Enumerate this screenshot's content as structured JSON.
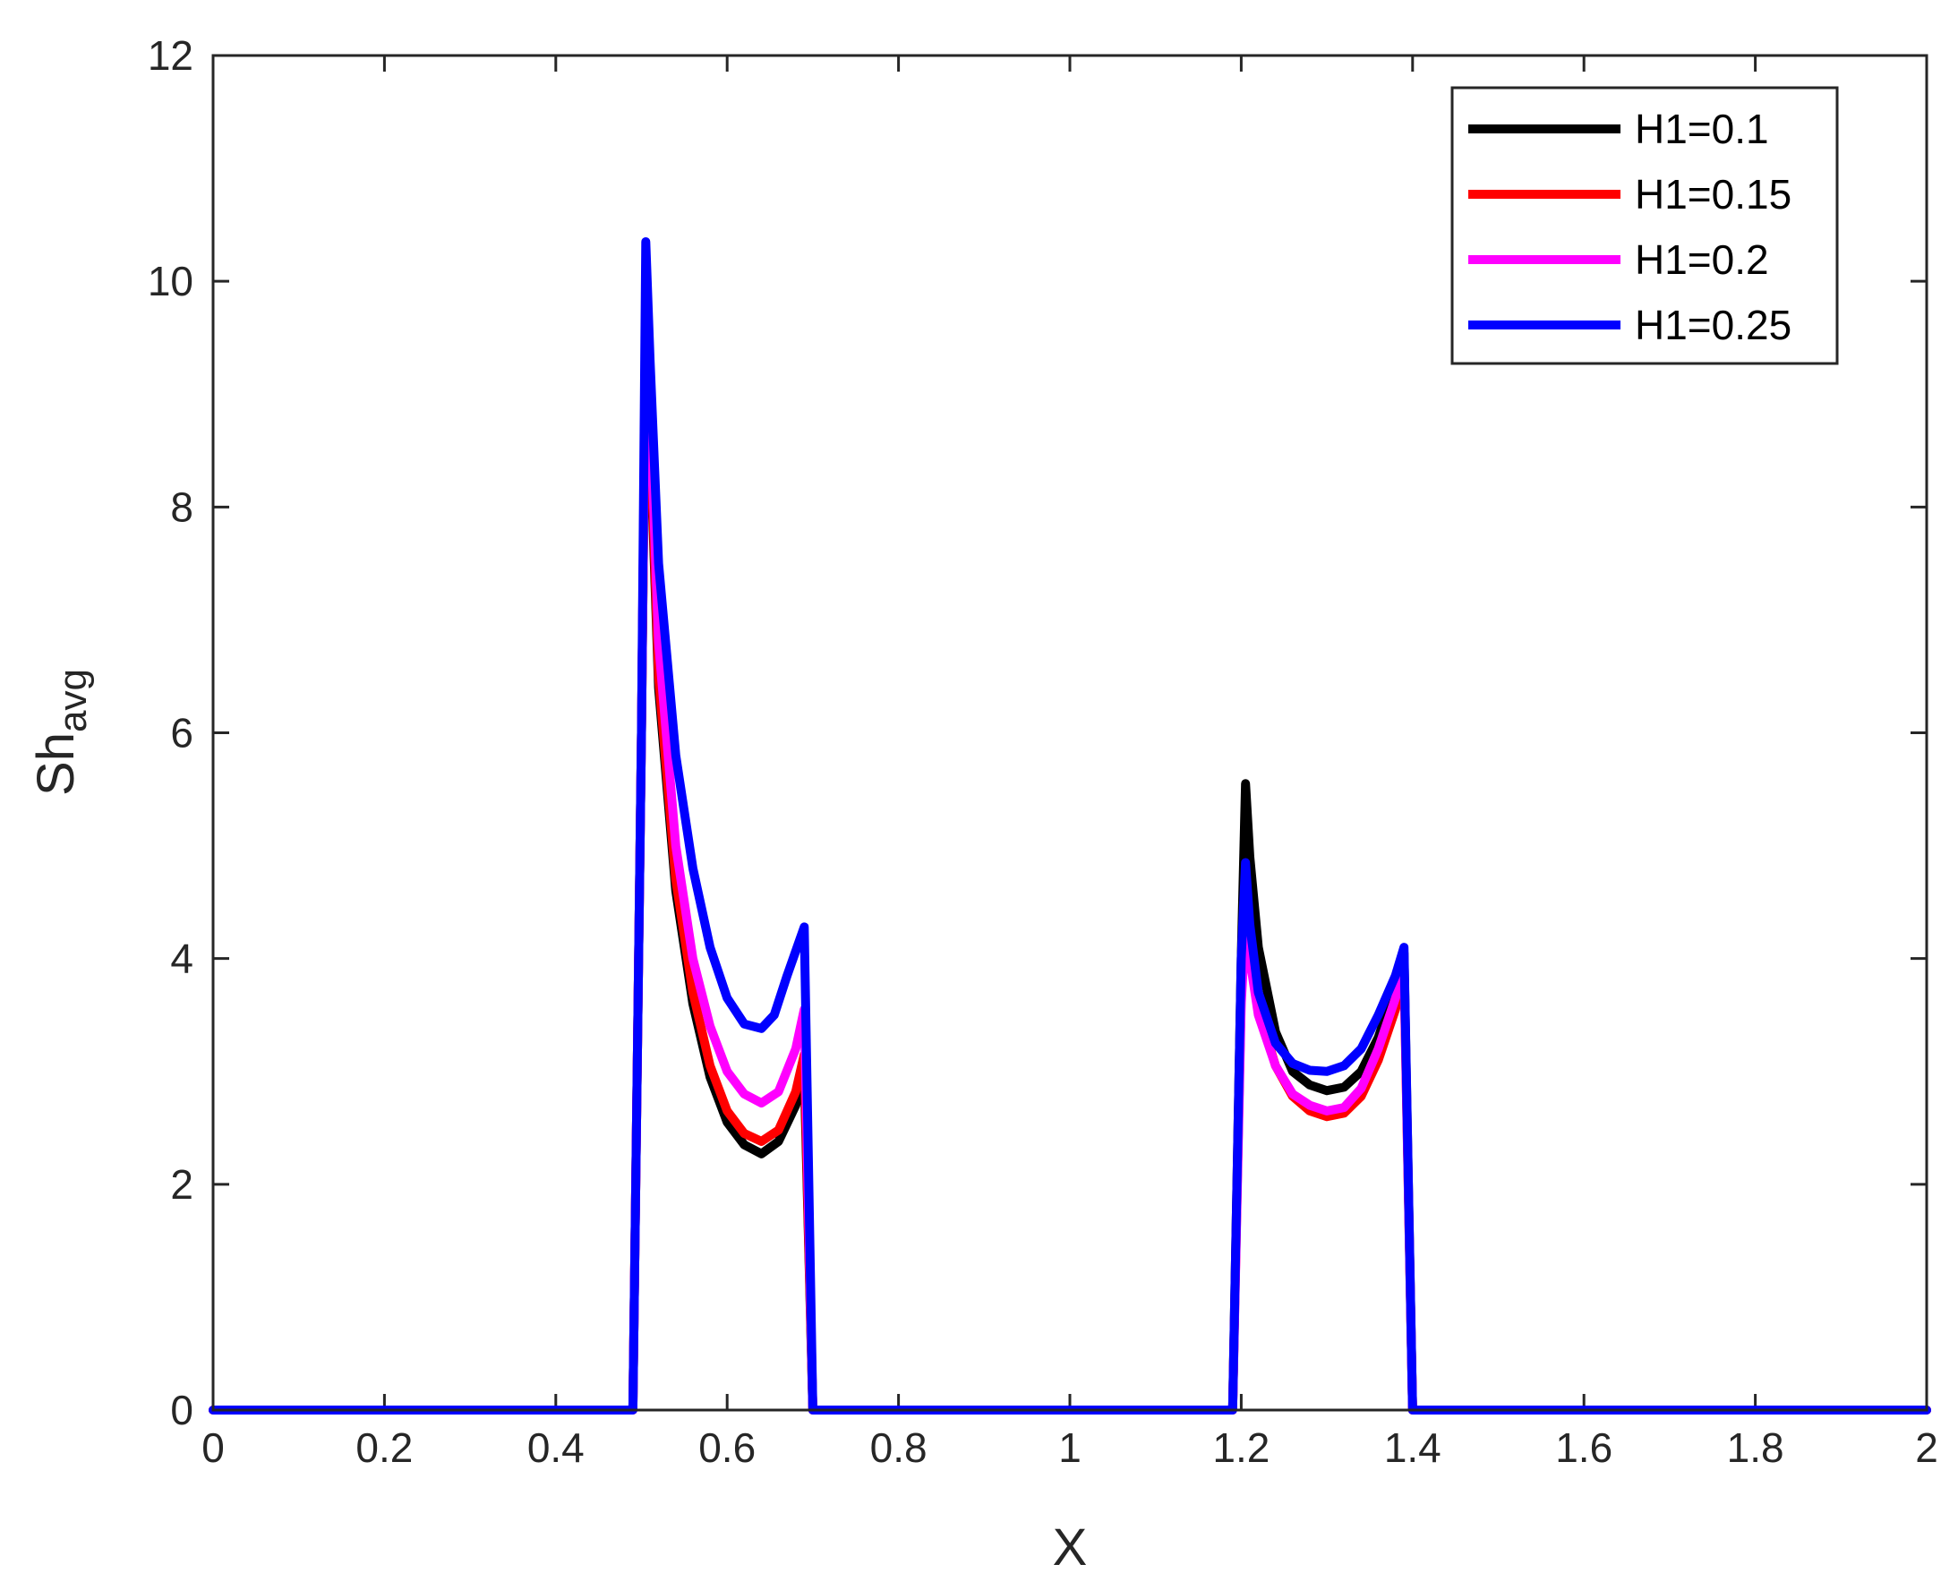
{
  "chart_data": {
    "type": "line",
    "title": "",
    "xlabel": "X",
    "ylabel_main": "Sh",
    "ylabel_sub": "avg",
    "xlim": [
      0,
      2
    ],
    "ylim": [
      0,
      12
    ],
    "xticks": [
      0,
      0.2,
      0.4,
      0.6,
      0.8,
      1,
      1.2,
      1.4,
      1.6,
      1.8,
      2
    ],
    "xtick_labels": [
      "0",
      "0.2",
      "0.4",
      "0.6",
      "0.8",
      "1",
      "1.2",
      "1.4",
      "1.6",
      "1.8",
      "2"
    ],
    "yticks": [
      0,
      2,
      4,
      6,
      8,
      10,
      12
    ],
    "ytick_labels": [
      "0",
      "2",
      "4",
      "6",
      "8",
      "10",
      "12"
    ],
    "grid": false,
    "legend_position": "top-right",
    "series": [
      {
        "name": "H1=0.1",
        "color": "#000000",
        "points": [
          [
            0,
            0
          ],
          [
            0.49,
            0
          ],
          [
            0.5,
            6
          ],
          [
            0.505,
            9.6
          ],
          [
            0.51,
            8.6
          ],
          [
            0.52,
            6.4
          ],
          [
            0.54,
            4.6
          ],
          [
            0.56,
            3.6
          ],
          [
            0.58,
            2.95
          ],
          [
            0.6,
            2.55
          ],
          [
            0.62,
            2.35
          ],
          [
            0.64,
            2.27
          ],
          [
            0.66,
            2.38
          ],
          [
            0.68,
            2.7
          ],
          [
            0.69,
            3.0
          ],
          [
            0.7,
            0
          ],
          [
            1.19,
            0
          ],
          [
            1.2,
            4.0
          ],
          [
            1.205,
            5.55
          ],
          [
            1.21,
            4.9
          ],
          [
            1.22,
            4.1
          ],
          [
            1.24,
            3.35
          ],
          [
            1.26,
            3.0
          ],
          [
            1.28,
            2.88
          ],
          [
            1.3,
            2.83
          ],
          [
            1.32,
            2.86
          ],
          [
            1.34,
            3.0
          ],
          [
            1.36,
            3.3
          ],
          [
            1.38,
            3.75
          ],
          [
            1.39,
            4.05
          ],
          [
            1.4,
            0
          ],
          [
            2,
            0
          ]
        ]
      },
      {
        "name": "H1=0.15",
        "color": "#ff0000",
        "points": [
          [
            0,
            0
          ],
          [
            0.49,
            0
          ],
          [
            0.5,
            6
          ],
          [
            0.505,
            9.6
          ],
          [
            0.51,
            8.7
          ],
          [
            0.52,
            6.5
          ],
          [
            0.54,
            4.7
          ],
          [
            0.56,
            3.7
          ],
          [
            0.58,
            3.05
          ],
          [
            0.6,
            2.65
          ],
          [
            0.62,
            2.45
          ],
          [
            0.64,
            2.38
          ],
          [
            0.66,
            2.48
          ],
          [
            0.68,
            2.82
          ],
          [
            0.69,
            3.15
          ],
          [
            0.7,
            0
          ],
          [
            1.19,
            0
          ],
          [
            1.2,
            3.7
          ],
          [
            1.205,
            4.5
          ],
          [
            1.21,
            4.15
          ],
          [
            1.22,
            3.55
          ],
          [
            1.24,
            3.05
          ],
          [
            1.26,
            2.78
          ],
          [
            1.28,
            2.65
          ],
          [
            1.3,
            2.6
          ],
          [
            1.32,
            2.63
          ],
          [
            1.34,
            2.78
          ],
          [
            1.36,
            3.1
          ],
          [
            1.38,
            3.55
          ],
          [
            1.39,
            3.9
          ],
          [
            1.4,
            0
          ],
          [
            2,
            0
          ]
        ]
      },
      {
        "name": "H1=0.2",
        "color": "#ff00ff",
        "points": [
          [
            0,
            0
          ],
          [
            0.49,
            0
          ],
          [
            0.5,
            6
          ],
          [
            0.505,
            9.8
          ],
          [
            0.51,
            8.9
          ],
          [
            0.52,
            6.8
          ],
          [
            0.54,
            5.0
          ],
          [
            0.56,
            4.0
          ],
          [
            0.58,
            3.4
          ],
          [
            0.6,
            3.0
          ],
          [
            0.62,
            2.8
          ],
          [
            0.64,
            2.72
          ],
          [
            0.66,
            2.82
          ],
          [
            0.68,
            3.2
          ],
          [
            0.69,
            3.55
          ],
          [
            0.7,
            0
          ],
          [
            1.19,
            0
          ],
          [
            1.2,
            3.6
          ],
          [
            1.205,
            4.3
          ],
          [
            1.21,
            4.0
          ],
          [
            1.22,
            3.5
          ],
          [
            1.24,
            3.05
          ],
          [
            1.26,
            2.8
          ],
          [
            1.28,
            2.7
          ],
          [
            1.3,
            2.65
          ],
          [
            1.32,
            2.68
          ],
          [
            1.34,
            2.85
          ],
          [
            1.36,
            3.2
          ],
          [
            1.38,
            3.65
          ],
          [
            1.39,
            3.95
          ],
          [
            1.4,
            0
          ],
          [
            2,
            0
          ]
        ]
      },
      {
        "name": "H1=0.25",
        "color": "#0000ff",
        "points": [
          [
            0,
            0
          ],
          [
            0.49,
            0
          ],
          [
            0.5,
            6
          ],
          [
            0.505,
            10.35
          ],
          [
            0.51,
            9.3
          ],
          [
            0.52,
            7.5
          ],
          [
            0.54,
            5.8
          ],
          [
            0.56,
            4.8
          ],
          [
            0.58,
            4.1
          ],
          [
            0.6,
            3.65
          ],
          [
            0.62,
            3.42
          ],
          [
            0.64,
            3.38
          ],
          [
            0.655,
            3.5
          ],
          [
            0.67,
            3.85
          ],
          [
            0.69,
            4.28
          ],
          [
            0.7,
            0
          ],
          [
            1.19,
            0
          ],
          [
            1.2,
            4.0
          ],
          [
            1.205,
            4.85
          ],
          [
            1.21,
            4.3
          ],
          [
            1.22,
            3.7
          ],
          [
            1.24,
            3.25
          ],
          [
            1.26,
            3.07
          ],
          [
            1.28,
            3.01
          ],
          [
            1.3,
            3.0
          ],
          [
            1.32,
            3.05
          ],
          [
            1.34,
            3.2
          ],
          [
            1.36,
            3.5
          ],
          [
            1.38,
            3.85
          ],
          [
            1.39,
            4.1
          ],
          [
            1.4,
            0
          ],
          [
            2,
            0
          ]
        ]
      }
    ]
  }
}
